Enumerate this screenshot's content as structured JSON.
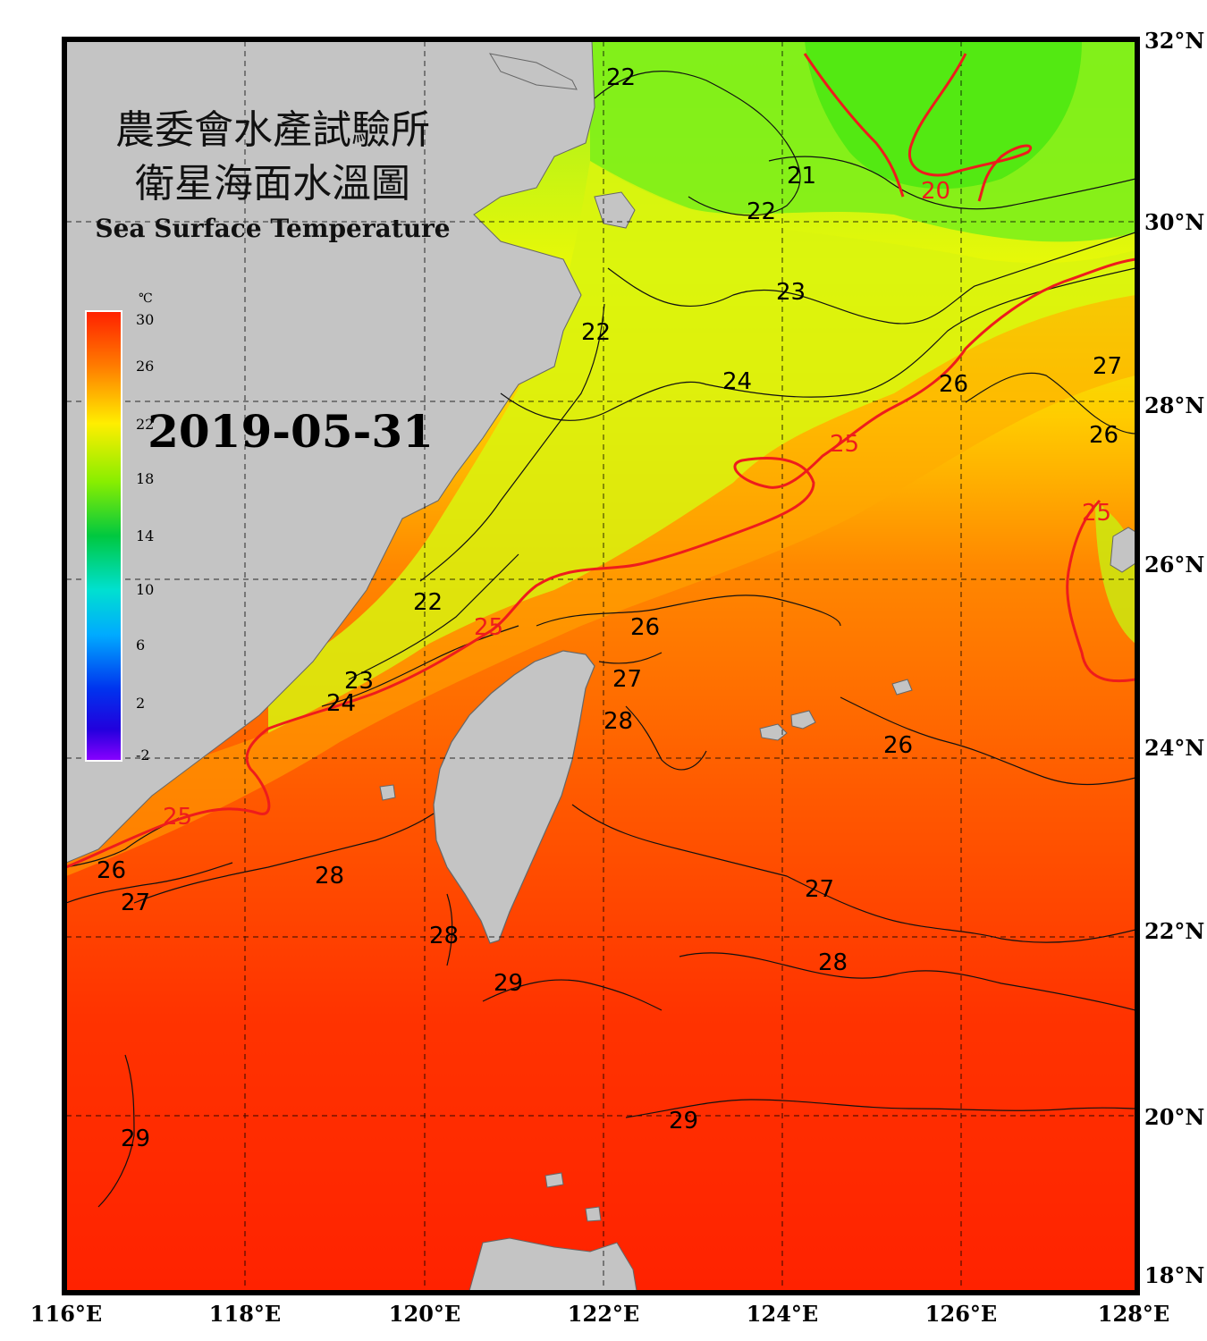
{
  "map": {
    "title_zh_line1": "農委會水產試驗所",
    "title_zh_line2": "衛星海面水溫圖",
    "title_en": "Sea Surface Temperature",
    "date": "2019-05-31"
  },
  "colorbar": {
    "unit": "℃",
    "ticks": [
      "30",
      "26",
      "22",
      "18",
      "14",
      "10",
      "6",
      "2",
      "-2"
    ]
  },
  "axes": {
    "lon_labels": [
      "116°E",
      "118°E",
      "120°E",
      "122°E",
      "124°E",
      "126°E",
      "128°E"
    ],
    "lat_labels": [
      "32°N",
      "30°N",
      "28°N",
      "26°N",
      "24°N",
      "22°N",
      "20°N",
      "18°N"
    ]
  },
  "contour_labels": [
    "22",
    "22",
    "21",
    "20",
    "22",
    "23",
    "22",
    "24",
    "26",
    "27",
    "25",
    "26",
    "25",
    "25",
    "22",
    "26",
    "23",
    "27",
    "24",
    "28",
    "26",
    "25",
    "26",
    "28",
    "27",
    "27",
    "28",
    "29",
    "28",
    "29",
    "29"
  ],
  "colors": {
    "land": "#c4c4c4",
    "frame": "#000000",
    "contour_25": "#ee1c1c",
    "contour_20": "#ee1c1c",
    "warm_sea": "#ff2a00",
    "cool_sea": "#66f21a"
  }
}
